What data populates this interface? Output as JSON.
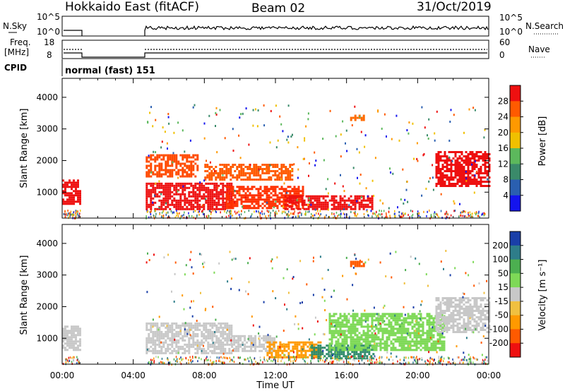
{
  "header": {
    "radar": "Hokkaido East (fitACF)",
    "beam": "Beam 02",
    "date": "31/Oct/2019"
  },
  "panels": {
    "nsky_label": "N.Sky",
    "nsearch_label": "N.Search",
    "nsky_ticks": [
      "10^5",
      "10^0"
    ],
    "nsky_right_ticks": [
      "10^5",
      "10^0"
    ],
    "freq_label_top": "Freq.",
    "freq_label_unit": "[MHz]",
    "freq_ticks": [
      "18",
      "8"
    ],
    "nave_label": "Nave",
    "nave_ticks": [
      "60",
      "0"
    ],
    "cpid_label": "CPID",
    "cpid_value": "normal (fast) 151"
  },
  "chart_data": [
    {
      "type": "heatmap",
      "title": "",
      "ylabel": "Slant Range [km]",
      "xlabel": "",
      "ylim": [
        180,
        4600
      ],
      "yticks": [
        "1000",
        "2000",
        "3000",
        "4000"
      ],
      "colorbar_label": "Power [dB]",
      "colorbar_ticks": [
        "4",
        "8",
        "12",
        "16",
        "20",
        "24",
        "28"
      ],
      "colorbar_colors": [
        "#1414ee",
        "#2a5fb0",
        "#3a8a6a",
        "#5cb85c",
        "#f0c000",
        "#ff9900",
        "#ff5a00",
        "#ee1010"
      ],
      "colorbar_range": [
        0,
        32
      ],
      "regions_ut_hours_km": [
        {
          "t": [
            0.0,
            1.0
          ],
          "r": [
            600,
            1400
          ],
          "color": "#ee1010"
        },
        {
          "t": [
            4.7,
            7.6
          ],
          "r": [
            1500,
            2200
          ],
          "color": "#ff4a00"
        },
        {
          "t": [
            4.7,
            9.5
          ],
          "r": [
            450,
            1300
          ],
          "color": "#ee1010"
        },
        {
          "t": [
            9.2,
            13.5
          ],
          "r": [
            500,
            1200
          ],
          "color": "#ff3000"
        },
        {
          "t": [
            12.5,
            17.5
          ],
          "r": [
            450,
            900
          ],
          "color": "#ee1010"
        },
        {
          "t": [
            8.0,
            13.0
          ],
          "r": [
            1400,
            1900
          ],
          "color": "#ff5a00"
        },
        {
          "t": [
            16.2,
            17.0
          ],
          "r": [
            3300,
            3450
          ],
          "color": "#ff6a00"
        },
        {
          "t": [
            21.0,
            24.0
          ],
          "r": [
            1200,
            2300
          ],
          "color": "#ee1010"
        }
      ]
    },
    {
      "type": "heatmap",
      "title": "",
      "ylabel": "Slant Range [km]",
      "xlabel": "Time UT",
      "ylim": [
        180,
        4600
      ],
      "yticks": [
        "1000",
        "2000",
        "3000",
        "4000"
      ],
      "xticks": [
        "00:00",
        "04:00",
        "08:00",
        "12:00",
        "16:00",
        "20:00",
        "00:00"
      ],
      "colorbar_label": "Velocity [m s⁻¹]",
      "colorbar_ticks": [
        "200",
        "100",
        "50",
        "15",
        "-15",
        "-50",
        "-100",
        "-200"
      ],
      "colorbar_colors": [
        "#1a3fa8",
        "#2e7d8a",
        "#4caf50",
        "#7ed957",
        "#c8c8c8",
        "#f0c040",
        "#ff9900",
        "#ff5a00",
        "#ee1010"
      ],
      "regions_ut_hours_km": [
        {
          "t": [
            0.0,
            1.0
          ],
          "r": [
            600,
            1400
          ],
          "color": "#c8c8c8"
        },
        {
          "t": [
            4.7,
            9.5
          ],
          "r": [
            500,
            1500
          ],
          "color": "#c8c8c8"
        },
        {
          "t": [
            9.5,
            12.0
          ],
          "r": [
            600,
            1100
          ],
          "color": "#c8c8c8"
        },
        {
          "t": [
            11.5,
            14.5
          ],
          "r": [
            400,
            900
          ],
          "color": "#ff9900"
        },
        {
          "t": [
            14.0,
            17.5
          ],
          "r": [
            350,
            800
          ],
          "color": "#2e8a6a"
        },
        {
          "t": [
            15.0,
            21.5
          ],
          "r": [
            600,
            1800
          ],
          "color": "#7ed957"
        },
        {
          "t": [
            16.2,
            17.0
          ],
          "r": [
            3300,
            3450
          ],
          "color": "#ff5a00"
        },
        {
          "t": [
            21.0,
            24.0
          ],
          "r": [
            1200,
            2300
          ],
          "color": "#c8c8c8"
        }
      ]
    }
  ]
}
